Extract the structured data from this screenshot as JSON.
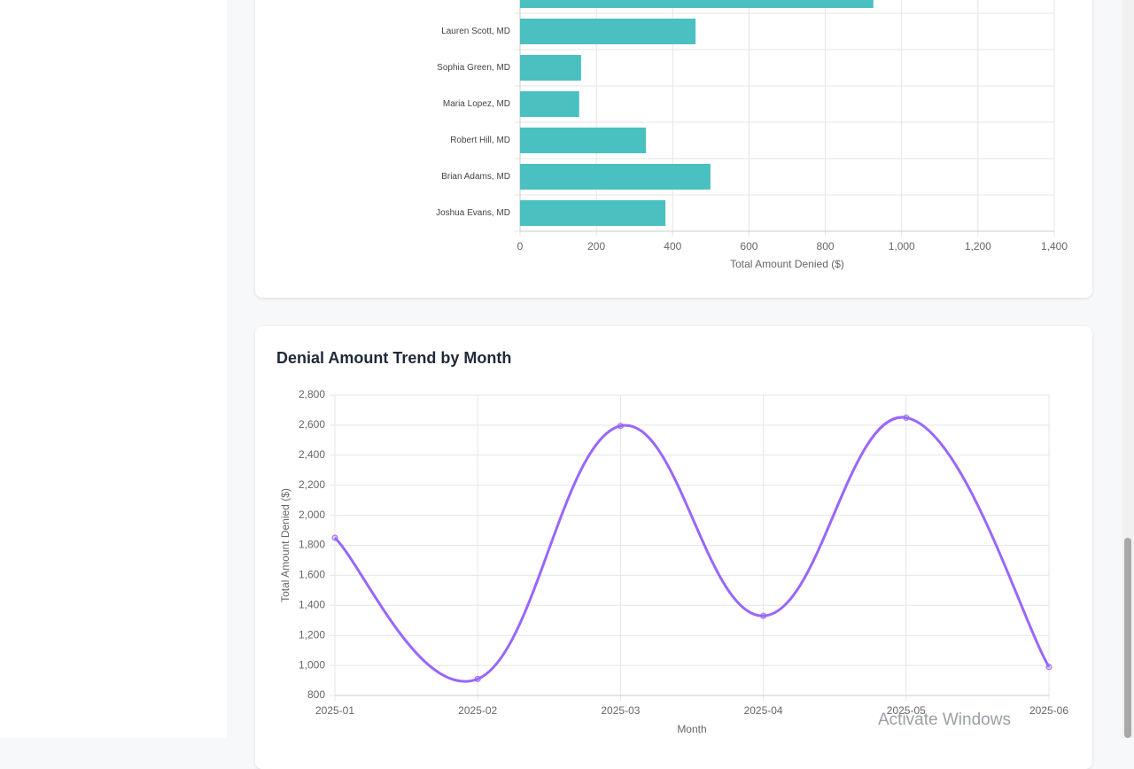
{
  "chart_data": [
    {
      "type": "bar",
      "orientation": "horizontal",
      "categories": [
        null,
        "Lauren Scott, MD",
        "Sophia Green, MD",
        "Maria Lopez, MD",
        "Robert Hill, MD",
        "Brian Adams, MD",
        "Joshua Evans, MD"
      ],
      "values": [
        926,
        460,
        160,
        155,
        330,
        499,
        381
      ],
      "color": "#4bc0c0",
      "xlabel": "Total Amount Denied ($)",
      "xlim": [
        0,
        1400
      ],
      "xticks": [
        0,
        200,
        400,
        600,
        800,
        {
          "value": 1000,
          "label": "1,000"
        },
        {
          "value": 1200,
          "label": "1,200"
        },
        {
          "value": 1400,
          "label": "1,400"
        }
      ],
      "grid": true
    },
    {
      "type": "line",
      "title": "Denial Amount Trend by Month",
      "categories": [
        "2025-01",
        "2025-02",
        "2025-03",
        "2025-04",
        "2025-05",
        "2025-06"
      ],
      "values": [
        1850,
        910,
        2595,
        1330,
        2650,
        990
      ],
      "color": "#9966ff",
      "xlabel": "Month",
      "ylabel": "Total Amount Denied ($)",
      "ylim": [
        800,
        2800
      ],
      "yticks": [
        800,
        {
          "value": 1000,
          "label": "1,000"
        },
        {
          "value": 1200,
          "label": "1,200"
        },
        {
          "value": 1400,
          "label": "1,400"
        },
        {
          "value": 1600,
          "label": "1,600"
        },
        {
          "value": 1800,
          "label": "1,800"
        },
        {
          "value": 2000,
          "label": "2,000"
        },
        {
          "value": 2200,
          "label": "2,200"
        },
        {
          "value": 2400,
          "label": "2,400"
        },
        {
          "value": 2600,
          "label": "2,600"
        },
        {
          "value": 2800,
          "label": "2,800"
        }
      ],
      "grid": true
    }
  ],
  "watermark": "Activate Windows"
}
